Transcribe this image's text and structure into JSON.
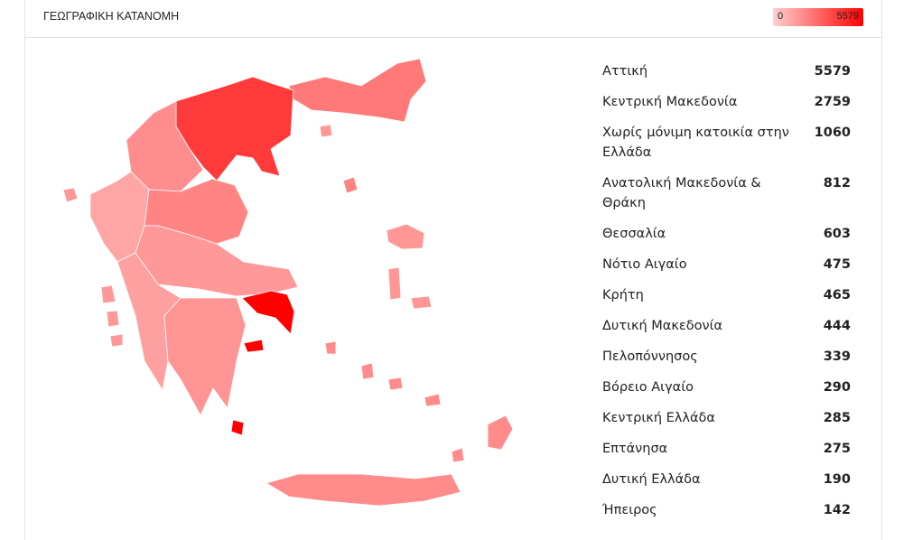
{
  "header": {
    "title": "ΓΕΩΓΡΑΦΙΚΗ ΚΑΤΑΝΟΜΗ"
  },
  "legend": {
    "min": "0",
    "max": "5579",
    "color_min": "#ffd0d0",
    "color_max": "#ff0000"
  },
  "regions": [
    {
      "name": "Αττική",
      "value": "5579"
    },
    {
      "name": "Κεντρική Μακεδονία",
      "value": "2759"
    },
    {
      "name": "Χωρίς μόνιμη κατοικία στην Ελλάδα",
      "value": "1060"
    },
    {
      "name": "Ανατολική Μακεδονία & Θράκη",
      "value": "812"
    },
    {
      "name": "Θεσσαλία",
      "value": "603"
    },
    {
      "name": "Νότιο Αιγαίο",
      "value": "475"
    },
    {
      "name": "Κρήτη",
      "value": "465"
    },
    {
      "name": "Δυτική Μακεδονία",
      "value": "444"
    },
    {
      "name": "Πελοπόννησος",
      "value": "339"
    },
    {
      "name": "Βόρειο Αιγαίο",
      "value": "290"
    },
    {
      "name": "Κεντρική Ελλάδα",
      "value": "285"
    },
    {
      "name": "Επτάνησα",
      "value": "275"
    },
    {
      "name": "Δυτική Ελλάδα",
      "value": "190"
    },
    {
      "name": "Ήπειρος",
      "value": "142"
    }
  ]
}
